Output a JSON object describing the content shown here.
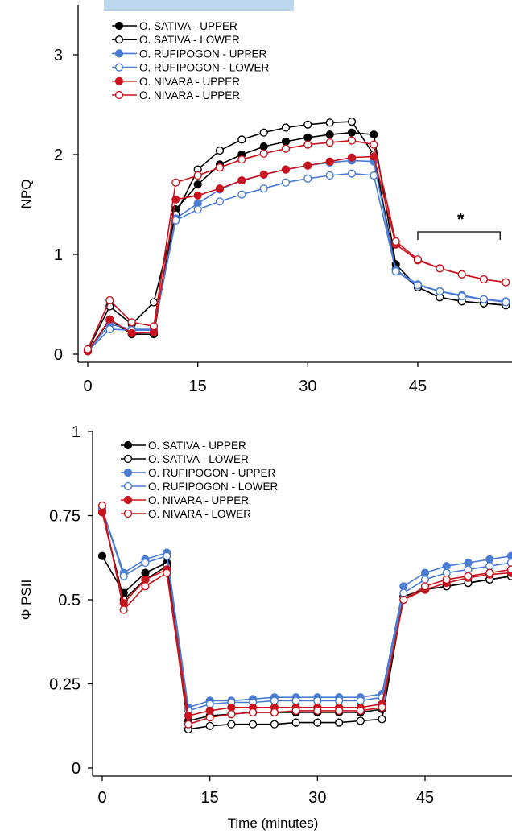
{
  "chart_data": [
    {
      "type": "line",
      "ylabel": "NPQ",
      "xlabel": "",
      "xlim": [
        0,
        56
      ],
      "ylim": [
        0,
        3.5
      ],
      "xticks": [
        0,
        15,
        30,
        45
      ],
      "yticks": [
        0,
        1,
        2,
        3
      ],
      "xtick_labels": [
        "0",
        "15",
        "30",
        "45"
      ],
      "ytick_labels": [
        "0",
        "1",
        "2",
        "3"
      ],
      "legend_position": "top-left",
      "annotation": {
        "text": "*",
        "x_from": 45,
        "x_to": 56
      },
      "x": [
        0,
        3,
        6,
        9,
        12,
        15,
        18,
        21,
        24,
        27,
        30,
        33,
        36,
        39,
        42,
        45,
        48,
        51,
        54,
        57
      ],
      "series": [
        {
          "name": "O. SATIVA - UPPER",
          "color": "#000000",
          "filled": true,
          "values": [
            0.03,
            0.34,
            0.2,
            0.2,
            1.45,
            1.7,
            1.9,
            2.0,
            2.08,
            2.13,
            2.17,
            2.2,
            2.22,
            2.2,
            0.9,
            0.67,
            0.57,
            0.53,
            0.51,
            0.49
          ]
        },
        {
          "name": "O. SATIVA - LOWER",
          "color": "#000000",
          "filled": false,
          "values": [
            0.04,
            0.48,
            0.3,
            0.52,
            1.4,
            1.85,
            2.04,
            2.15,
            2.22,
            2.27,
            2.3,
            2.32,
            2.33,
            2.0,
            0.85,
            0.67,
            0.57,
            0.53,
            0.51,
            0.49
          ]
        },
        {
          "name": "O. RUFIPOGON - UPPER",
          "color": "#4a7cd4",
          "filled": true,
          "values": [
            0.03,
            0.3,
            0.25,
            0.25,
            1.36,
            1.51,
            1.65,
            1.74,
            1.8,
            1.85,
            1.89,
            1.92,
            1.94,
            1.93,
            0.84,
            0.7,
            0.63,
            0.59,
            0.55,
            0.53
          ]
        },
        {
          "name": "O. RUFIPOGON - LOWER",
          "color": "#4a7cd4",
          "filled": false,
          "values": [
            0.03,
            0.25,
            0.24,
            0.24,
            1.34,
            1.45,
            1.53,
            1.6,
            1.66,
            1.72,
            1.76,
            1.79,
            1.81,
            1.79,
            0.83,
            0.69,
            0.63,
            0.58,
            0.55,
            0.52
          ]
        },
        {
          "name": "O. NIVARA - UPPER",
          "color": "#c8141e",
          "filled": true,
          "values": [
            0.03,
            0.35,
            0.21,
            0.22,
            1.55,
            1.59,
            1.66,
            1.74,
            1.8,
            1.85,
            1.89,
            1.93,
            1.97,
            1.98,
            1.1,
            0.94,
            0.86,
            0.8,
            0.75,
            0.72
          ]
        },
        {
          "name": "O. NIVARA - UPPER",
          "color": "#c8141e",
          "filled": false,
          "values": [
            0.05,
            0.54,
            0.32,
            0.28,
            1.72,
            1.79,
            1.87,
            1.95,
            2.01,
            2.06,
            2.1,
            2.12,
            2.14,
            2.1,
            1.13,
            0.95,
            0.86,
            0.8,
            0.75,
            0.72
          ]
        }
      ]
    },
    {
      "type": "line",
      "ylabel": "Φ PSII",
      "xlabel": "Time (minutes)",
      "xlim": [
        0,
        57
      ],
      "ylim": [
        0,
        1
      ],
      "xticks": [
        0,
        15,
        30,
        45
      ],
      "yticks": [
        0,
        0.25,
        0.5,
        0.75,
        1
      ],
      "xtick_labels": [
        "0",
        "15",
        "30",
        "45"
      ],
      "ytick_labels": [
        "0",
        "0.25",
        "0.5",
        "0.75",
        "1"
      ],
      "legend_position": "top-left",
      "x": [
        0,
        3,
        6,
        9,
        12,
        15,
        18,
        21,
        24,
        27,
        30,
        33,
        36,
        39,
        42,
        45,
        48,
        51,
        54,
        57
      ],
      "series": [
        {
          "name": "O. SATIVA - UPPER",
          "color": "#000000",
          "filled": true,
          "values": [
            0.63,
            0.52,
            0.58,
            0.61,
            0.14,
            0.155,
            0.16,
            0.165,
            0.165,
            0.165,
            0.165,
            0.165,
            0.165,
            0.175,
            0.51,
            0.53,
            0.54,
            0.55,
            0.56,
            0.57
          ]
        },
        {
          "name": "O. SATIVA - LOWER",
          "color": "#000000",
          "filled": false,
          "values": [
            0.76,
            0.5,
            0.56,
            0.6,
            0.115,
            0.125,
            0.13,
            0.13,
            0.13,
            0.135,
            0.135,
            0.135,
            0.14,
            0.145,
            0.51,
            0.53,
            0.54,
            0.55,
            0.56,
            0.57
          ]
        },
        {
          "name": "O. RUFIPOGON - UPPER",
          "color": "#4a7cd4",
          "filled": true,
          "values": [
            0.77,
            0.58,
            0.62,
            0.64,
            0.18,
            0.2,
            0.2,
            0.205,
            0.21,
            0.21,
            0.21,
            0.21,
            0.21,
            0.22,
            0.54,
            0.58,
            0.6,
            0.61,
            0.62,
            0.63
          ]
        },
        {
          "name": "O. RUFIPOGON - LOWER",
          "color": "#4a7cd4",
          "filled": false,
          "values": [
            0.77,
            0.57,
            0.61,
            0.63,
            0.17,
            0.19,
            0.195,
            0.195,
            0.2,
            0.2,
            0.2,
            0.2,
            0.2,
            0.21,
            0.52,
            0.56,
            0.58,
            0.59,
            0.6,
            0.61
          ]
        },
        {
          "name": "O. NIVARA - UPPER",
          "color": "#c8141e",
          "filled": true,
          "values": [
            0.76,
            0.49,
            0.56,
            0.59,
            0.155,
            0.17,
            0.18,
            0.18,
            0.18,
            0.18,
            0.18,
            0.18,
            0.18,
            0.19,
            0.5,
            0.53,
            0.55,
            0.565,
            0.575,
            0.58
          ]
        },
        {
          "name": "O. NIVARA - LOWER",
          "color": "#c8141e",
          "filled": false,
          "values": [
            0.78,
            0.47,
            0.54,
            0.58,
            0.13,
            0.15,
            0.16,
            0.165,
            0.165,
            0.17,
            0.17,
            0.17,
            0.17,
            0.18,
            0.5,
            0.54,
            0.56,
            0.57,
            0.58,
            0.59
          ]
        }
      ]
    }
  ]
}
